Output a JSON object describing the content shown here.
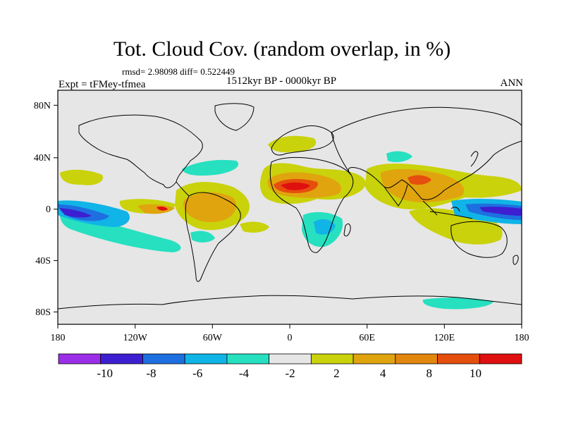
{
  "title": "Tot. Cloud Cov. (random overlap, in %)",
  "stats": "rmsd= 2.98098 diff= 0.522449",
  "experiment": "Expt = tFMey-tfmea",
  "period": "1512kyr BP - 0000kyr BP",
  "season": "ANN",
  "lon_ticks": [
    "180",
    "120W",
    "60W",
    "0",
    "60E",
    "120E",
    "180"
  ],
  "lat_ticks": [
    "80N",
    "40N",
    "0",
    "40S",
    "80S"
  ],
  "colorbar": {
    "colors": [
      "#9b2ee8",
      "#3d1fd1",
      "#1e6fe0",
      "#11b4e6",
      "#26e0c0",
      "#e6e6e6",
      "#c9d20a",
      "#e0a40e",
      "#e2860e",
      "#e64e0e",
      "#e01010"
    ],
    "labels": [
      "-10",
      "-8",
      "-6",
      "-4",
      "-2",
      "2",
      "4",
      "8",
      "10"
    ]
  },
  "map_data": {
    "projection": "cylindrical equidistant",
    "lon_range": [
      -180,
      180
    ],
    "lat_range": [
      -90,
      90
    ],
    "anomaly_regions": [
      {
        "name": "Central Pacific south of equator",
        "lon": [
          -180,
          -120
        ],
        "lat": [
          -5,
          -25
        ],
        "level": "-10 to -8"
      },
      {
        "name": "Sahara / West Africa",
        "lon": [
          -15,
          25
        ],
        "lat": [
          5,
          30
        ],
        "level": "8 to 10"
      },
      {
        "name": "West Pacific near equator",
        "lon": [
          140,
          180
        ],
        "lat": [
          -5,
          5
        ],
        "level": "-10 to -8"
      },
      {
        "name": "Tropical South America",
        "lon": [
          -80,
          -40
        ],
        "lat": [
          10,
          -25
        ],
        "level": "4 to 8"
      },
      {
        "name": "Indian monsoon region",
        "lon": [
          70,
          120
        ],
        "lat": [
          10,
          35
        ],
        "level": "4 to 8"
      },
      {
        "name": "Southern Africa",
        "lon": [
          15,
          40
        ],
        "lat": [
          -10,
          -30
        ],
        "level": "-6 to -2"
      },
      {
        "name": "North Atlantic",
        "lon": [
          -70,
          -30
        ],
        "lat": [
          30,
          45
        ],
        "level": "-4 to -2"
      }
    ]
  }
}
